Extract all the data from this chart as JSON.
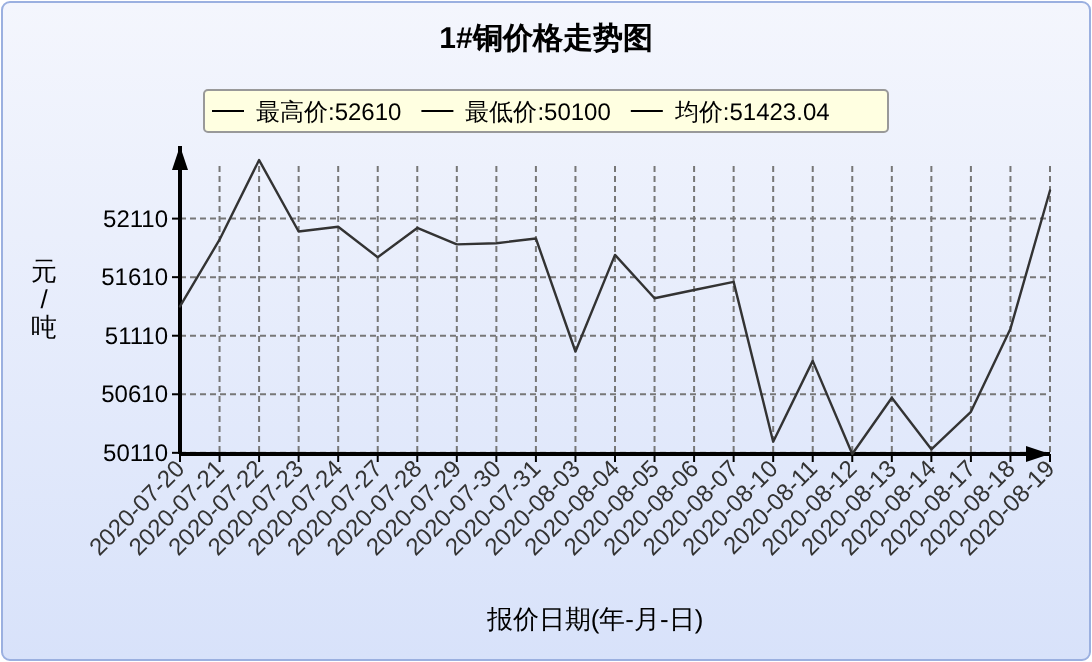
{
  "chart_data": {
    "type": "line",
    "title": "1#铜价格走势图",
    "xlabel": "报价日期(年-月-日)",
    "ylabel": "元/吨",
    "annotations": [
      "最高价:52610",
      "最低价:50100",
      "均价:51423.04"
    ],
    "categories": [
      "2020-07-20",
      "2020-07-21",
      "2020-07-22",
      "2020-07-23",
      "2020-07-24",
      "2020-07-27",
      "2020-07-28",
      "2020-07-29",
      "2020-07-30",
      "2020-07-31",
      "2020-08-03",
      "2020-08-04",
      "2020-08-05",
      "2020-08-06",
      "2020-08-07",
      "2020-08-10",
      "2020-08-11",
      "2020-08-12",
      "2020-08-13",
      "2020-08-14",
      "2020-08-17",
      "2020-08-18",
      "2020-08-19"
    ],
    "series": [
      {
        "color": "#333333",
        "values": [
          51360,
          51930,
          52610,
          52000,
          52040,
          51780,
          52030,
          51890,
          51900,
          51940,
          50975,
          51800,
          51430,
          51500,
          51570,
          50205,
          50895,
          50100,
          50580,
          50140,
          50460,
          51170,
          52350
        ]
      }
    ],
    "ylim": [
      50100,
      52730
    ],
    "yticks": [
      50110,
      50610,
      51110,
      51610,
      52110
    ],
    "grid": true,
    "line_style": "solid",
    "marker": "none"
  }
}
